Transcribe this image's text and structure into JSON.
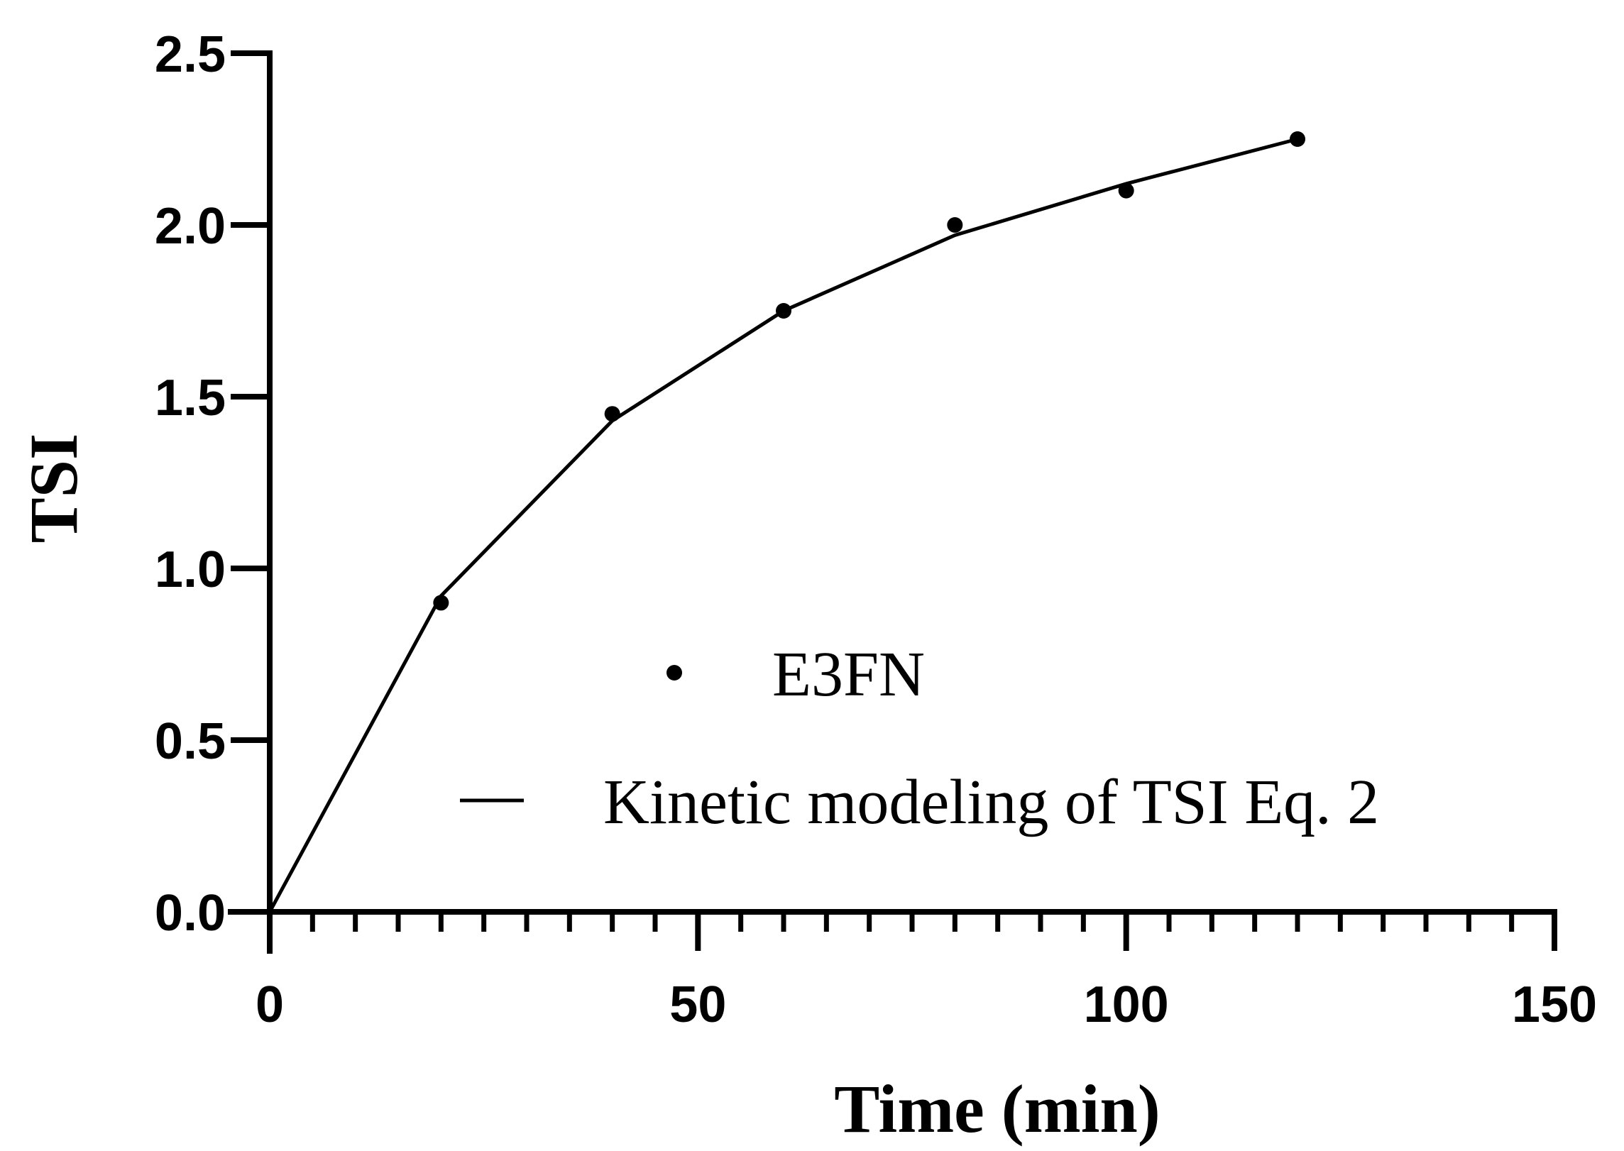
{
  "chart_data": {
    "type": "scatter",
    "xlabel": "Time (min)",
    "ylabel": "TSI",
    "xlim": [
      0,
      150
    ],
    "ylim": [
      0,
      2.5
    ],
    "x_ticks": [
      0,
      50,
      100,
      150
    ],
    "x_tick_labels": [
      "0",
      "50",
      "100",
      "150"
    ],
    "x_minor_step": 5,
    "y_ticks": [
      0,
      0.5,
      1.0,
      1.5,
      2.0,
      2.5
    ],
    "y_tick_labels": [
      "0.0",
      "0.5",
      "1.0",
      "1.5",
      "2.0",
      "2.5"
    ],
    "grid": false,
    "legend_position": "bottom-right",
    "series": [
      {
        "name": "E3FN",
        "kind": "scatter",
        "color": "#000000",
        "x": [
          20,
          40,
          60,
          80,
          100,
          120
        ],
        "y": [
          0.9,
          1.45,
          1.75,
          2.0,
          2.1,
          2.25
        ]
      },
      {
        "name": "Kinetic modeling of TSI Eq. 2",
        "kind": "line",
        "color": "#000000",
        "x": [
          0,
          20,
          40,
          60,
          80,
          100,
          120
        ],
        "y": [
          0.0,
          0.92,
          1.43,
          1.75,
          1.97,
          2.12,
          2.25
        ]
      }
    ]
  }
}
